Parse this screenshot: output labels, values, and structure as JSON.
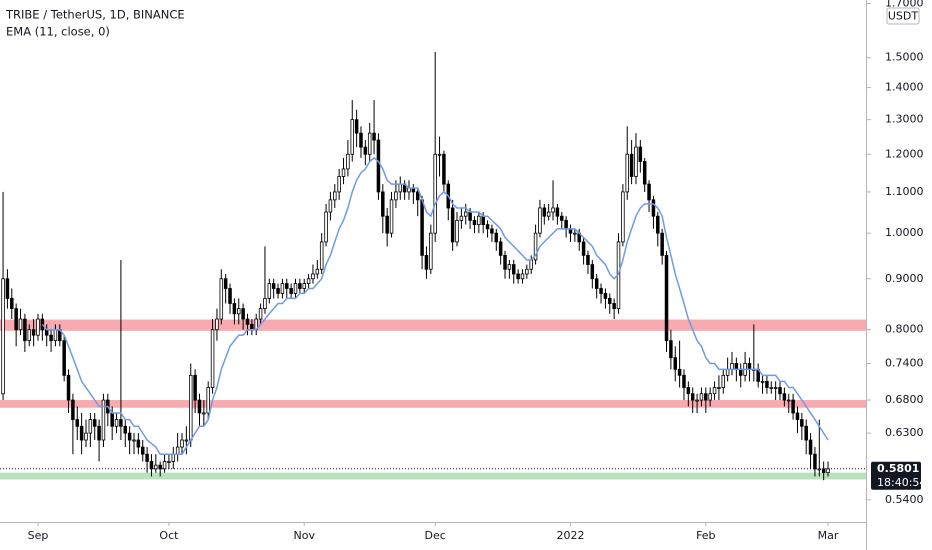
{
  "chart_data": {
    "type": "candlestick",
    "title": "TRIBE / TetherUS, 1D, BINANCE",
    "indicator": "EMA (11, close, 0)",
    "currency": "USDT",
    "log_scale": true,
    "up_color": "#ffffff",
    "down_color": "#000000",
    "wick_color": "#000000",
    "ema_color": "#6f9be4",
    "xlim": [
      -0.7,
      197.7
    ],
    "ylim": [
      0.513,
      1.714
    ],
    "yticks": [
      {
        "value": 1.7,
        "label": "1.7000"
      },
      {
        "value": 1.5,
        "label": "1.5000"
      },
      {
        "value": 1.4,
        "label": "1.4000"
      },
      {
        "value": 1.3,
        "label": "1.3000"
      },
      {
        "value": 1.2,
        "label": "1.2000"
      },
      {
        "value": 1.1,
        "label": "1.1000"
      },
      {
        "value": 1.0,
        "label": "1.0000"
      },
      {
        "value": 0.9,
        "label": "0.9000"
      },
      {
        "value": 0.8,
        "label": "0.8000"
      },
      {
        "value": 0.74,
        "label": "0.7400"
      },
      {
        "value": 0.68,
        "label": "0.6800"
      },
      {
        "value": 0.63,
        "label": "0.6300"
      },
      {
        "value": 0.54,
        "label": "0.5400"
      }
    ],
    "xticks": [
      {
        "value": 8,
        "label": "Sep"
      },
      {
        "value": 38,
        "label": "Oct"
      },
      {
        "value": 69,
        "label": "Nov"
      },
      {
        "value": 99,
        "label": "Dec"
      },
      {
        "value": 130,
        "label": "2022"
      },
      {
        "value": 161,
        "label": "Feb"
      },
      {
        "value": 189,
        "label": "Mar"
      }
    ],
    "zones": [
      {
        "low": 0.798,
        "high": 0.819,
        "color": "#f7aab0"
      },
      {
        "low": 0.668,
        "high": 0.68,
        "color": "#f7aab0"
      },
      {
        "low": 0.566,
        "high": 0.575,
        "color": "#b9e2bb"
      }
    ],
    "last_price": {
      "value": 0.5801,
      "label": "0.5801"
    },
    "countdown": "18:40:54",
    "candles": [
      [
        0.69,
        1.1,
        0.68,
        0.9
      ],
      [
        0.9,
        0.92,
        0.84,
        0.86
      ],
      [
        0.86,
        0.88,
        0.82,
        0.84
      ],
      [
        0.84,
        0.85,
        0.77,
        0.8
      ],
      [
        0.8,
        0.84,
        0.79,
        0.82
      ],
      [
        0.82,
        0.83,
        0.76,
        0.78
      ],
      [
        0.78,
        0.81,
        0.77,
        0.8
      ],
      [
        0.8,
        0.82,
        0.77,
        0.79
      ],
      [
        0.79,
        0.83,
        0.78,
        0.82
      ],
      [
        0.82,
        0.83,
        0.78,
        0.8
      ],
      [
        0.8,
        0.81,
        0.77,
        0.79
      ],
      [
        0.79,
        0.8,
        0.76,
        0.78
      ],
      [
        0.78,
        0.81,
        0.77,
        0.8
      ],
      [
        0.8,
        0.81,
        0.77,
        0.78
      ],
      [
        0.78,
        0.79,
        0.71,
        0.72
      ],
      [
        0.72,
        0.73,
        0.66,
        0.68
      ],
      [
        0.68,
        0.69,
        0.6,
        0.65
      ],
      [
        0.65,
        0.67,
        0.62,
        0.64
      ],
      [
        0.64,
        0.66,
        0.6,
        0.62
      ],
      [
        0.62,
        0.65,
        0.61,
        0.63
      ],
      [
        0.63,
        0.66,
        0.61,
        0.65
      ],
      [
        0.65,
        0.66,
        0.62,
        0.64
      ],
      [
        0.64,
        0.65,
        0.59,
        0.62
      ],
      [
        0.62,
        0.69,
        0.61,
        0.68
      ],
      [
        0.68,
        0.69,
        0.64,
        0.66
      ],
      [
        0.66,
        0.67,
        0.62,
        0.64
      ],
      [
        0.64,
        0.66,
        0.63,
        0.65
      ],
      [
        0.65,
        0.94,
        0.62,
        0.64
      ],
      [
        0.64,
        0.65,
        0.61,
        0.63
      ],
      [
        0.63,
        0.64,
        0.6,
        0.62
      ],
      [
        0.62,
        0.63,
        0.6,
        0.62
      ],
      [
        0.62,
        0.63,
        0.6,
        0.61
      ],
      [
        0.61,
        0.62,
        0.59,
        0.6
      ],
      [
        0.6,
        0.61,
        0.575,
        0.59
      ],
      [
        0.59,
        0.6,
        0.57,
        0.58
      ],
      [
        0.58,
        0.6,
        0.575,
        0.585
      ],
      [
        0.585,
        0.59,
        0.57,
        0.58
      ],
      [
        0.58,
        0.6,
        0.575,
        0.59
      ],
      [
        0.59,
        0.6,
        0.58,
        0.59
      ],
      [
        0.59,
        0.61,
        0.58,
        0.6
      ],
      [
        0.6,
        0.63,
        0.59,
        0.61
      ],
      [
        0.61,
        0.63,
        0.6,
        0.62
      ],
      [
        0.62,
        0.64,
        0.6,
        0.62
      ],
      [
        0.62,
        0.74,
        0.61,
        0.72
      ],
      [
        0.72,
        0.73,
        0.66,
        0.68
      ],
      [
        0.68,
        0.69,
        0.64,
        0.66
      ],
      [
        0.66,
        0.68,
        0.64,
        0.66
      ],
      [
        0.66,
        0.71,
        0.65,
        0.7
      ],
      [
        0.7,
        0.82,
        0.69,
        0.8
      ],
      [
        0.8,
        0.84,
        0.78,
        0.82
      ],
      [
        0.82,
        0.92,
        0.81,
        0.9
      ],
      [
        0.9,
        0.91,
        0.85,
        0.88
      ],
      [
        0.88,
        0.89,
        0.83,
        0.85
      ],
      [
        0.85,
        0.86,
        0.81,
        0.83
      ],
      [
        0.83,
        0.86,
        0.81,
        0.84
      ],
      [
        0.84,
        0.85,
        0.8,
        0.82
      ],
      [
        0.82,
        0.83,
        0.79,
        0.81
      ],
      [
        0.81,
        0.82,
        0.79,
        0.8
      ],
      [
        0.8,
        0.83,
        0.79,
        0.82
      ],
      [
        0.82,
        0.85,
        0.81,
        0.84
      ],
      [
        0.84,
        0.97,
        0.83,
        0.86
      ],
      [
        0.86,
        0.9,
        0.85,
        0.89
      ],
      [
        0.89,
        0.9,
        0.86,
        0.88
      ],
      [
        0.88,
        0.89,
        0.86,
        0.87
      ],
      [
        0.87,
        0.9,
        0.86,
        0.89
      ],
      [
        0.89,
        0.9,
        0.86,
        0.88
      ],
      [
        0.88,
        0.89,
        0.86,
        0.87
      ],
      [
        0.87,
        0.9,
        0.86,
        0.89
      ],
      [
        0.89,
        0.9,
        0.87,
        0.88
      ],
      [
        0.88,
        0.9,
        0.87,
        0.89
      ],
      [
        0.89,
        0.91,
        0.88,
        0.9
      ],
      [
        0.9,
        0.93,
        0.89,
        0.91
      ],
      [
        0.91,
        0.94,
        0.9,
        0.92
      ],
      [
        0.92,
        1.0,
        0.91,
        0.98
      ],
      [
        0.98,
        1.07,
        0.97,
        1.05
      ],
      [
        1.05,
        1.1,
        1.03,
        1.08
      ],
      [
        1.08,
        1.12,
        1.06,
        1.1
      ],
      [
        1.1,
        1.16,
        1.08,
        1.14
      ],
      [
        1.14,
        1.19,
        1.12,
        1.16
      ],
      [
        1.16,
        1.24,
        1.14,
        1.2
      ],
      [
        1.2,
        1.36,
        1.18,
        1.3
      ],
      [
        1.3,
        1.33,
        1.22,
        1.26
      ],
      [
        1.26,
        1.28,
        1.19,
        1.22
      ],
      [
        1.22,
        1.24,
        1.17,
        1.2
      ],
      [
        1.2,
        1.29,
        1.18,
        1.26
      ],
      [
        1.26,
        1.36,
        1.2,
        1.24
      ],
      [
        1.24,
        1.26,
        1.08,
        1.1
      ],
      [
        1.1,
        1.12,
        1.0,
        1.04
      ],
      [
        1.04,
        1.06,
        0.97,
        1.0
      ],
      [
        1.0,
        1.1,
        0.99,
        1.08
      ],
      [
        1.08,
        1.13,
        1.06,
        1.1
      ],
      [
        1.1,
        1.14,
        1.08,
        1.12
      ],
      [
        1.12,
        1.13,
        1.08,
        1.1
      ],
      [
        1.1,
        1.13,
        1.08,
        1.11
      ],
      [
        1.11,
        1.12,
        1.07,
        1.1
      ],
      [
        1.1,
        1.11,
        1.04,
        1.08
      ],
      [
        1.08,
        1.09,
        0.92,
        0.95
      ],
      [
        0.95,
        0.97,
        0.9,
        0.92
      ],
      [
        0.92,
        1.02,
        0.91,
        1.0
      ],
      [
        1.0,
        1.52,
        0.98,
        1.2
      ],
      [
        1.2,
        1.25,
        1.14,
        1.2
      ],
      [
        1.2,
        1.21,
        1.1,
        1.12
      ],
      [
        1.12,
        1.13,
        1.03,
        1.06
      ],
      [
        1.06,
        1.08,
        0.96,
        0.98
      ],
      [
        0.98,
        1.05,
        0.97,
        1.03
      ],
      [
        1.03,
        1.06,
        1.01,
        1.04
      ],
      [
        1.04,
        1.07,
        1.02,
        1.05
      ],
      [
        1.05,
        1.06,
        1.01,
        1.03
      ],
      [
        1.03,
        1.04,
        1.0,
        1.02
      ],
      [
        1.02,
        1.05,
        1.0,
        1.04
      ],
      [
        1.04,
        1.05,
        1.0,
        1.02
      ],
      [
        1.02,
        1.03,
        0.99,
        1.01
      ],
      [
        1.01,
        1.02,
        0.98,
        1.0
      ],
      [
        1.0,
        1.01,
        0.96,
        0.98
      ],
      [
        0.98,
        0.99,
        0.93,
        0.95
      ],
      [
        0.95,
        0.96,
        0.9,
        0.92
      ],
      [
        0.92,
        0.94,
        0.9,
        0.93
      ],
      [
        0.93,
        0.94,
        0.89,
        0.91
      ],
      [
        0.91,
        0.92,
        0.89,
        0.9
      ],
      [
        0.9,
        0.92,
        0.89,
        0.91
      ],
      [
        0.91,
        0.93,
        0.9,
        0.92
      ],
      [
        0.92,
        0.95,
        0.91,
        0.94
      ],
      [
        0.94,
        1.02,
        0.93,
        1.0
      ],
      [
        1.0,
        1.08,
        0.99,
        1.06
      ],
      [
        1.06,
        1.07,
        1.02,
        1.04
      ],
      [
        1.04,
        1.07,
        1.03,
        1.05
      ],
      [
        1.05,
        1.13,
        1.03,
        1.06
      ],
      [
        1.06,
        1.07,
        1.02,
        1.04
      ],
      [
        1.04,
        1.05,
        1.01,
        1.03
      ],
      [
        1.03,
        1.04,
        0.99,
        1.01
      ],
      [
        1.01,
        1.02,
        0.98,
        1.0
      ],
      [
        1.0,
        1.01,
        0.98,
        1.0
      ],
      [
        1.0,
        1.01,
        0.96,
        0.98
      ],
      [
        0.98,
        0.99,
        0.93,
        0.95
      ],
      [
        0.95,
        0.96,
        0.91,
        0.93
      ],
      [
        0.93,
        0.94,
        0.88,
        0.9
      ],
      [
        0.9,
        0.91,
        0.86,
        0.88
      ],
      [
        0.88,
        0.89,
        0.85,
        0.87
      ],
      [
        0.87,
        0.88,
        0.84,
        0.86
      ],
      [
        0.86,
        0.87,
        0.83,
        0.85
      ],
      [
        0.85,
        0.86,
        0.82,
        0.84
      ],
      [
        0.84,
        1.0,
        0.83,
        0.98
      ],
      [
        0.98,
        1.12,
        0.97,
        1.1
      ],
      [
        1.1,
        1.28,
        1.08,
        1.2
      ],
      [
        1.2,
        1.24,
        1.12,
        1.14
      ],
      [
        1.14,
        1.26,
        1.12,
        1.22
      ],
      [
        1.22,
        1.24,
        1.15,
        1.18
      ],
      [
        1.18,
        1.19,
        1.1,
        1.12
      ],
      [
        1.12,
        1.13,
        1.05,
        1.08
      ],
      [
        1.08,
        1.09,
        1.01,
        1.04
      ],
      [
        1.04,
        1.05,
        0.97,
        1.0
      ],
      [
        1.0,
        1.01,
        0.93,
        0.95
      ],
      [
        0.95,
        0.96,
        0.76,
        0.78
      ],
      [
        0.78,
        0.8,
        0.73,
        0.75
      ],
      [
        0.75,
        0.77,
        0.71,
        0.73
      ],
      [
        0.73,
        0.78,
        0.7,
        0.72
      ],
      [
        0.72,
        0.73,
        0.68,
        0.7
      ],
      [
        0.7,
        0.71,
        0.67,
        0.69
      ],
      [
        0.69,
        0.7,
        0.66,
        0.68
      ],
      [
        0.68,
        0.69,
        0.66,
        0.68
      ],
      [
        0.68,
        0.7,
        0.67,
        0.69
      ],
      [
        0.69,
        0.7,
        0.66,
        0.68
      ],
      [
        0.68,
        0.7,
        0.67,
        0.69
      ],
      [
        0.69,
        0.71,
        0.68,
        0.7
      ],
      [
        0.7,
        0.72,
        0.68,
        0.7
      ],
      [
        0.7,
        0.73,
        0.69,
        0.72
      ],
      [
        0.72,
        0.75,
        0.71,
        0.73
      ],
      [
        0.73,
        0.76,
        0.72,
        0.74
      ],
      [
        0.74,
        0.75,
        0.71,
        0.73
      ],
      [
        0.73,
        0.74,
        0.7,
        0.72
      ],
      [
        0.72,
        0.76,
        0.71,
        0.74
      ],
      [
        0.74,
        0.75,
        0.71,
        0.73
      ],
      [
        0.73,
        0.81,
        0.71,
        0.73
      ],
      [
        0.73,
        0.74,
        0.7,
        0.71
      ],
      [
        0.71,
        0.72,
        0.69,
        0.71
      ],
      [
        0.71,
        0.72,
        0.69,
        0.7
      ],
      [
        0.7,
        0.71,
        0.69,
        0.7
      ],
      [
        0.7,
        0.71,
        0.68,
        0.7
      ],
      [
        0.7,
        0.71,
        0.68,
        0.69
      ],
      [
        0.69,
        0.7,
        0.67,
        0.68
      ],
      [
        0.68,
        0.69,
        0.66,
        0.68
      ],
      [
        0.68,
        0.69,
        0.65,
        0.66
      ],
      [
        0.66,
        0.67,
        0.63,
        0.65
      ],
      [
        0.65,
        0.66,
        0.62,
        0.64
      ],
      [
        0.64,
        0.65,
        0.6,
        0.62
      ],
      [
        0.62,
        0.63,
        0.58,
        0.6
      ],
      [
        0.6,
        0.61,
        0.57,
        0.58
      ],
      [
        0.58,
        0.65,
        0.57,
        0.58
      ],
      [
        0.58,
        0.59,
        0.565,
        0.575
      ],
      [
        0.575,
        0.59,
        0.57,
        0.5801
      ]
    ],
    "ema": [
      null,
      null,
      null,
      null,
      null,
      null,
      null,
      null,
      null,
      0.81,
      0.8,
      0.8,
      0.8,
      0.8,
      0.79,
      0.77,
      0.75,
      0.73,
      0.71,
      0.7,
      0.69,
      0.68,
      0.67,
      0.67,
      0.67,
      0.66,
      0.66,
      0.66,
      0.65,
      0.65,
      0.64,
      0.64,
      0.63,
      0.62,
      0.615,
      0.61,
      0.6,
      0.6,
      0.6,
      0.6,
      0.6,
      0.6,
      0.61,
      0.62,
      0.63,
      0.64,
      0.64,
      0.65,
      0.68,
      0.7,
      0.73,
      0.75,
      0.77,
      0.78,
      0.79,
      0.79,
      0.8,
      0.8,
      0.8,
      0.81,
      0.82,
      0.83,
      0.84,
      0.85,
      0.85,
      0.86,
      0.86,
      0.86,
      0.87,
      0.87,
      0.88,
      0.88,
      0.89,
      0.9,
      0.93,
      0.95,
      0.98,
      1.01,
      1.03,
      1.06,
      1.1,
      1.13,
      1.15,
      1.16,
      1.18,
      1.19,
      1.18,
      1.16,
      1.13,
      1.12,
      1.12,
      1.12,
      1.12,
      1.11,
      1.11,
      1.11,
      1.08,
      1.05,
      1.04,
      1.07,
      1.09,
      1.1,
      1.09,
      1.07,
      1.06,
      1.06,
      1.06,
      1.05,
      1.05,
      1.05,
      1.04,
      1.04,
      1.03,
      1.02,
      1.01,
      0.99,
      0.98,
      0.97,
      0.96,
      0.95,
      0.94,
      0.94,
      0.95,
      0.97,
      0.98,
      0.99,
      1.0,
      1.01,
      1.01,
      1.01,
      1.01,
      1.01,
      1.0,
      0.99,
      0.98,
      0.97,
      0.95,
      0.94,
      0.93,
      0.91,
      0.9,
      0.91,
      0.94,
      0.98,
      1.01,
      1.04,
      1.06,
      1.07,
      1.07,
      1.07,
      1.06,
      1.04,
      0.99,
      0.95,
      0.91,
      0.88,
      0.85,
      0.82,
      0.8,
      0.78,
      0.77,
      0.75,
      0.74,
      0.74,
      0.73,
      0.73,
      0.73,
      0.73,
      0.73,
      0.73,
      0.73,
      0.73,
      0.73,
      0.73,
      0.72,
      0.72,
      0.72,
      0.72,
      0.71,
      0.71,
      0.7,
      0.7,
      0.69,
      0.68,
      0.67,
      0.66,
      0.65,
      0.64,
      0.63,
      0.62
    ]
  }
}
